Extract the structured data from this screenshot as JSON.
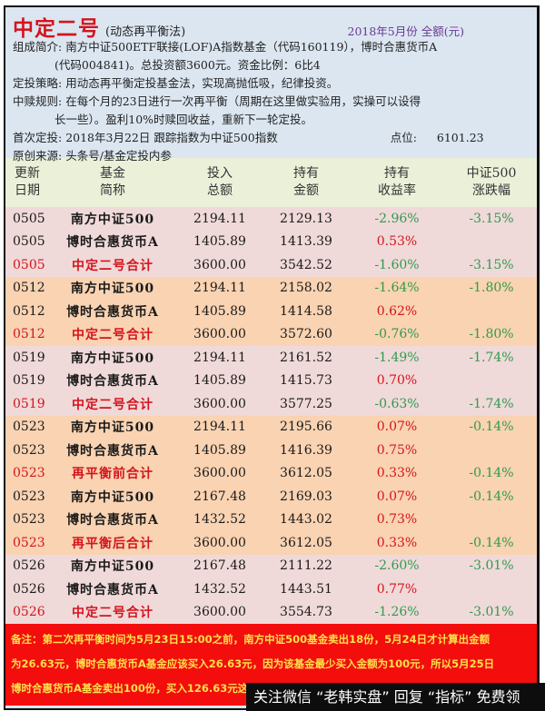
{
  "header": {
    "title": "中定二号",
    "subtitle": "(动态再平衡法)",
    "period": "2018年5月份 全额(元)",
    "composition_label": "组成简介:",
    "composition_line1": "南方中证500ETF联接(LOF)A指数基金（代码160119），博时合惠货币A",
    "composition_line2": "(代码004841)。总投资额3600元。资金比例：6比4",
    "strategy_label": "定投策略:",
    "strategy_text": "用动态再平衡定投基金法，实现高抛低吸，纪律投资。",
    "redeem_label": "中赎规则:",
    "redeem_line1": "在每个月的23日进行一次再平衡（周期在这里做实验用，实操可以设得",
    "redeem_line2": "长一些）。盈利10%时赎回收益，重新下一轮定投。",
    "first_label": "首次定投:",
    "first_text": "2018年3月22日  跟踪指数为中证500指数",
    "point_label": "点位:",
    "point_value": "6101.23",
    "source_label": "原创来源:",
    "source_text": "头条号/基金定投内参"
  },
  "table": {
    "columns": [
      {
        "line1": "更新",
        "line2": "日期"
      },
      {
        "line1": "基金",
        "line2": "简称"
      },
      {
        "line1": "投入",
        "line2": "总额"
      },
      {
        "line1": "持有",
        "line2": "金额"
      },
      {
        "line1": "持有",
        "line2": "收益率"
      },
      {
        "line1": "中证500",
        "line2": "涨跌幅"
      }
    ],
    "rows": [
      {
        "date": "0505",
        "name": "南方中证500",
        "invest": "2194.11",
        "hold": "2129.13",
        "rate": "-2.96%",
        "index": "-3.15%"
      },
      {
        "date": "0505",
        "name": "博时合惠货币A",
        "invest": "1405.89",
        "hold": "1413.39",
        "rate": "0.53%",
        "index": ""
      },
      {
        "date": "0505",
        "name": "中定二号合计",
        "invest": "3600.00",
        "hold": "3542.52",
        "rate": "-1.60%",
        "index": "-3.15%"
      },
      {
        "date": "0512",
        "name": "南方中证500",
        "invest": "2194.11",
        "hold": "2158.02",
        "rate": "-1.64%",
        "index": "-1.80%"
      },
      {
        "date": "0512",
        "name": "博时合惠货币A",
        "invest": "1405.89",
        "hold": "1414.58",
        "rate": "0.62%",
        "index": ""
      },
      {
        "date": "0512",
        "name": "中定二号合计",
        "invest": "3600.00",
        "hold": "3572.60",
        "rate": "-0.76%",
        "index": "-1.80%"
      },
      {
        "date": "0519",
        "name": "南方中证500",
        "invest": "2194.11",
        "hold": "2161.52",
        "rate": "-1.49%",
        "index": "-1.74%"
      },
      {
        "date": "0519",
        "name": "博时合惠货币A",
        "invest": "1405.89",
        "hold": "1415.73",
        "rate": "0.70%",
        "index": ""
      },
      {
        "date": "0519",
        "name": "中定二号合计",
        "invest": "3600.00",
        "hold": "3577.25",
        "rate": "-0.63%",
        "index": "-1.74%"
      },
      {
        "date": "0523",
        "name": "南方中证500",
        "invest": "2194.11",
        "hold": "2195.66",
        "rate": "0.07%",
        "index": "-0.14%"
      },
      {
        "date": "0523",
        "name": "博时合惠货币A",
        "invest": "1405.89",
        "hold": "1416.39",
        "rate": "0.75%",
        "index": ""
      },
      {
        "date": "0523",
        "name": "再平衡前合计",
        "invest": "3600.00",
        "hold": "3612.05",
        "rate": "0.33%",
        "index": "-0.14%"
      },
      {
        "date": "0523",
        "name": "南方中证500",
        "invest": "2167.48",
        "hold": "2169.03",
        "rate": "0.07%",
        "index": "-0.14%"
      },
      {
        "date": "0523",
        "name": "博时合惠货币A",
        "invest": "1432.52",
        "hold": "1443.02",
        "rate": "0.73%",
        "index": ""
      },
      {
        "date": "0523",
        "name": "再平衡后合计",
        "invest": "3600.00",
        "hold": "3612.05",
        "rate": "0.33%",
        "index": "-0.14%"
      },
      {
        "date": "0526",
        "name": "南方中证500",
        "invest": "2167.48",
        "hold": "2111.22",
        "rate": "-2.60%",
        "index": "-3.01%"
      },
      {
        "date": "0526",
        "name": "博时合惠货币A",
        "invest": "1432.52",
        "hold": "1443.51",
        "rate": "0.77%",
        "index": ""
      },
      {
        "date": "0526",
        "name": "中定二号合计",
        "invest": "3600.00",
        "hold": "3554.73",
        "rate": "-1.26%",
        "index": "-3.01%"
      }
    ]
  },
  "note": {
    "line1": "备注：第二次再平衡时间为5月23日15:00之前，南方中证500基金卖出18份，5月24日才计算出金额",
    "line2": "为26.63元，博时合惠货币A基金应该买入26.63元，因为该基金最少买入金额为100元，所以5月25日",
    "line3": "博时合惠货币A基金卖出100份，买入126.63元这"
  },
  "watermark": {
    "text": "关注微信 “老韩实盘” 回复 “指标” 免费领"
  },
  "colors": {
    "title_red": "#d4141c",
    "period_purple": "#6a3a93",
    "header_bg": "#dbe6f1",
    "table_head_bg": "#ebf0d9",
    "group_pink": "#f0d9d9",
    "group_peach": "#f9d3b2",
    "negative_green": "#2f9a4f",
    "positive_red": "#d4141c",
    "note_bg": "#f40d0d",
    "note_text": "#ffe04a"
  }
}
